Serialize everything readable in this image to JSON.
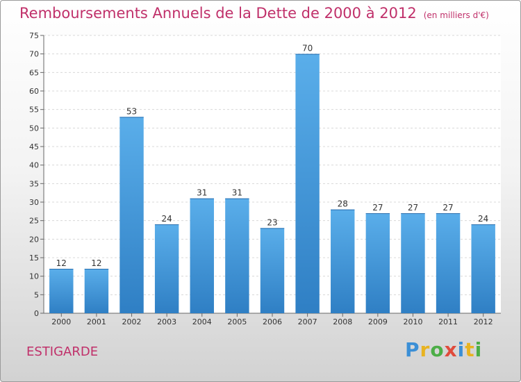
{
  "chart_data": {
    "type": "bar",
    "title": "Remboursements Annuels de la Dette de 2000 à 2012",
    "subtitle": "(en milliers d'€)",
    "categories": [
      "2000",
      "2001",
      "2002",
      "2003",
      "2004",
      "2005",
      "2006",
      "2007",
      "2008",
      "2009",
      "2010",
      "2011",
      "2012"
    ],
    "values": [
      12,
      12,
      53,
      24,
      31,
      31,
      23,
      70,
      28,
      27,
      27,
      27,
      24
    ],
    "ylim": [
      0,
      75
    ],
    "yticks": [
      0,
      5,
      10,
      15,
      20,
      25,
      30,
      35,
      40,
      45,
      50,
      55,
      60,
      65,
      70,
      75
    ],
    "grid": true,
    "bar_color": "#3d95d8",
    "title_color": "#c0306a"
  },
  "footer": {
    "town": "ESTIGARDE",
    "logo": "Proxiti",
    "logo_colors": [
      "#3b8fd6",
      "#e8b320",
      "#4cae47",
      "#e04b3c",
      "#3b8fd6",
      "#e8b320",
      "#4cae47"
    ]
  }
}
